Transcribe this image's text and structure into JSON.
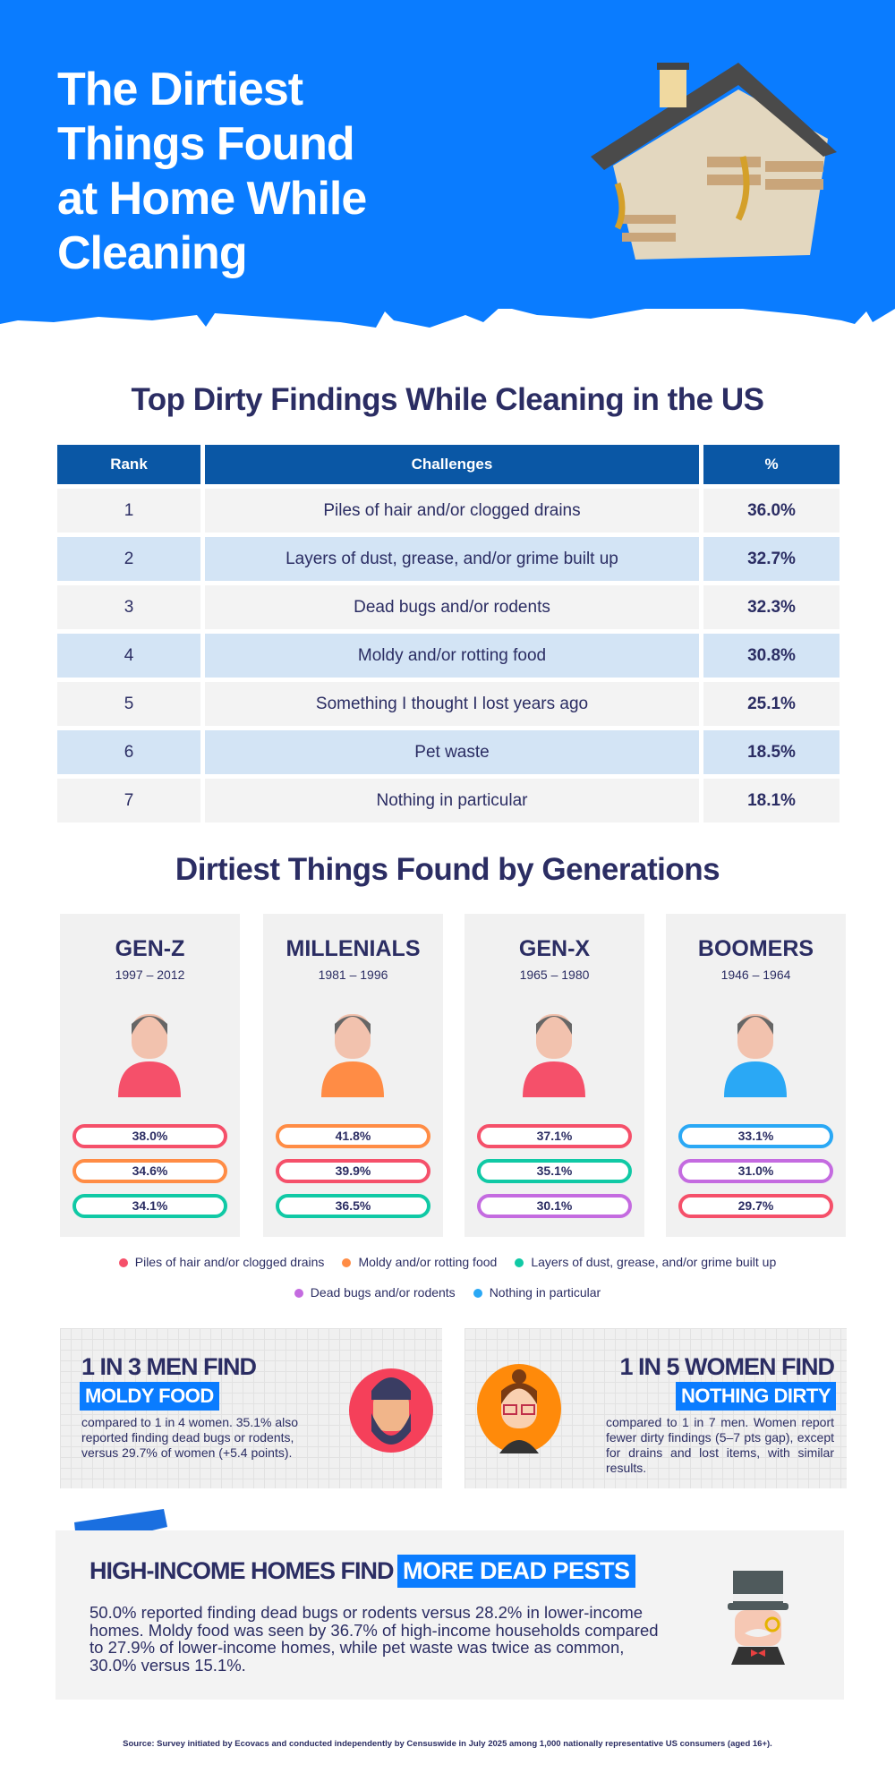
{
  "header": {
    "title_lines": [
      "The Dirtiest",
      "Things Found",
      "at Home While",
      "Cleaning"
    ],
    "bg_color": "#0a7cff",
    "image": "abandoned-house-illustration"
  },
  "table_section": {
    "title": "Top Dirty Findings While Cleaning in the US",
    "columns": [
      "Rank",
      "Challenges",
      "%"
    ],
    "rows": [
      {
        "rank": "1",
        "challenge": "Piles of hair and/or clogged drains",
        "pct": "36.0%"
      },
      {
        "rank": "2",
        "challenge": "Layers of dust, grease, and/or grime built up",
        "pct": "32.7%"
      },
      {
        "rank": "3",
        "challenge": "Dead bugs and/or rodents",
        "pct": "32.3%"
      },
      {
        "rank": "4",
        "challenge": "Moldy and/or rotting food",
        "pct": "30.8%"
      },
      {
        "rank": "5",
        "challenge": "Something I thought I lost years ago",
        "pct": "25.1%"
      },
      {
        "rank": "6",
        "challenge": "Pet waste",
        "pct": "18.5%"
      },
      {
        "rank": "7",
        "challenge": "Nothing in particular",
        "pct": "18.1%"
      }
    ],
    "colors": {
      "header": "#0a57a5",
      "row_odd": "#f3f3f3",
      "row_even": "#d3e4f5"
    }
  },
  "generations": {
    "title": "Dirtiest Things Found by Generations",
    "cards": [
      {
        "name": "GEN-Z",
        "years": "1997 – 2012",
        "icon": "vr-gamer-avatar",
        "stats": [
          {
            "value": "38.0%",
            "cat": 0
          },
          {
            "value": "34.6%",
            "cat": 1
          },
          {
            "value": "34.1%",
            "cat": 2
          }
        ]
      },
      {
        "name": "MILLENIALS",
        "years": "1981 – 1996",
        "icon": "phone-user-avatar",
        "stats": [
          {
            "value": "41.8%",
            "cat": 1
          },
          {
            "value": "39.9%",
            "cat": 0
          },
          {
            "value": "36.5%",
            "cat": 2
          }
        ]
      },
      {
        "name": "GEN-X",
        "years": "1965 – 1980",
        "icon": "woman-books-avatar",
        "stats": [
          {
            "value": "37.1%",
            "cat": 0
          },
          {
            "value": "35.1%",
            "cat": 2
          },
          {
            "value": "30.1%",
            "cat": 3
          }
        ]
      },
      {
        "name": "BOOMERS",
        "years": "1946 – 1964",
        "icon": "elderly-couple-avatar",
        "stats": [
          {
            "value": "33.1%",
            "cat": 4
          },
          {
            "value": "31.0%",
            "cat": 3
          },
          {
            "value": "29.7%",
            "cat": 0
          }
        ]
      }
    ],
    "legend": [
      {
        "label": "Piles of hair and/or clogged drains",
        "color": "#f5506a"
      },
      {
        "label": "Moldy and/or rotting food",
        "color": "#ff8c45"
      },
      {
        "label": "Layers of dust, grease, and/or grime built up",
        "color": "#10c9a5"
      },
      {
        "label": "Dead bugs and/or rodents",
        "color": "#c46be0"
      },
      {
        "label": "Nothing in particular",
        "color": "#2aa8f5"
      }
    ]
  },
  "men": {
    "headline": "1 IN 3 MEN FIND",
    "highlight": "MOLDY FOOD",
    "body": "compared to 1 in 4 women. 35.1% also reported finding dead bugs or rodents, versus 29.7% of women (+5.4 points).",
    "icon": "bearded-man-avatar"
  },
  "women": {
    "headline": "1 IN 5 WOMEN FIND",
    "highlight": "NOTHING DIRTY",
    "body": "compared to 1 in 7 men. Women report fewer dirty findings (5–7 pts gap), except for drains and lost items, with similar results.",
    "icon": "woman-glasses-avatar"
  },
  "income": {
    "headline": "HIGH-INCOME HOMES FIND",
    "highlight": "MORE DEAD PESTS",
    "body": "50.0% reported finding dead bugs or rodents versus 28.2% in lower-income homes. Moldy food was seen by 36.7% of high-income households compared to 27.9% of lower-income homes, while pet waste was twice as common, 30.0% versus 15.1%.",
    "icon": "top-hat-gentleman-avatar"
  },
  "source": "Source: Survey initiated by Ecovacs and conducted independently by Censuswide in July 2025 among 1,000 nationally representative US consumers (aged 16+)."
}
